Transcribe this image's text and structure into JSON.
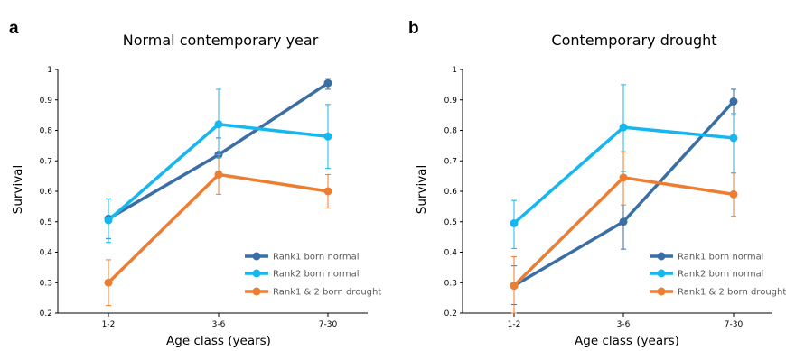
{
  "chart_data": [
    {
      "type": "line",
      "panel": "a",
      "title": "Normal contemporary year",
      "xlabel": "Age class (years)",
      "ylabel": "Survival",
      "categories": [
        "1-2",
        "3-6",
        "7-30"
      ],
      "ylim": [
        0.2,
        1
      ],
      "yticks": [
        "0.2",
        "0.3",
        "0.4",
        "0.5",
        "0.6",
        "0.7",
        "0.8",
        "0.9",
        "1"
      ],
      "grid": false,
      "legend_position": "bottom-right",
      "series": [
        {
          "name": "Rank1 born normal",
          "color": "#3A6EA5",
          "values": [
            0.51,
            0.72,
            0.955
          ],
          "err_low": [
            0.445,
            0.665,
            0.935
          ],
          "err_high": [
            0.575,
            0.775,
            0.97
          ]
        },
        {
          "name": "Rank2 born normal",
          "color": "#15B7EE",
          "values": [
            0.505,
            0.82,
            0.78
          ],
          "err_low": [
            0.432,
            0.71,
            0.675
          ],
          "err_high": [
            0.575,
            0.935,
            0.885
          ]
        },
        {
          "name": "Rank1 & 2 born drought",
          "color": "#ED7D31",
          "values": [
            0.3,
            0.655,
            0.6
          ],
          "err_low": [
            0.225,
            0.59,
            0.545
          ],
          "err_high": [
            0.375,
            0.72,
            0.655
          ]
        }
      ]
    },
    {
      "type": "line",
      "panel": "b",
      "title": "Contemporary drought",
      "xlabel": "Age class (years)",
      "ylabel": "Survival",
      "categories": [
        "1-2",
        "3-6",
        "7-30"
      ],
      "ylim": [
        0.2,
        1
      ],
      "yticks": [
        "0.2",
        "0.3",
        "0.4",
        "0.5",
        "0.6",
        "0.7",
        "0.8",
        "0.9",
        "1"
      ],
      "grid": false,
      "legend_position": "bottom-right",
      "series": [
        {
          "name": "Rank1 born normal",
          "color": "#3A6EA5",
          "values": [
            0.29,
            0.5,
            0.895
          ],
          "err_low": [
            0.228,
            0.41,
            0.85
          ],
          "err_high": [
            0.355,
            0.665,
            0.935
          ]
        },
        {
          "name": "Rank2 born normal",
          "color": "#15B7EE",
          "values": [
            0.495,
            0.81,
            0.775
          ],
          "err_low": [
            0.412,
            0.665,
            0.66
          ],
          "err_high": [
            0.57,
            0.95,
            0.855
          ]
        },
        {
          "name": "Rank1 & 2 born drought",
          "color": "#ED7D31",
          "values": [
            0.29,
            0.645,
            0.59
          ],
          "err_low": [
            0.2,
            0.555,
            0.518
          ],
          "err_high": [
            0.385,
            0.73,
            0.66
          ]
        }
      ]
    }
  ]
}
